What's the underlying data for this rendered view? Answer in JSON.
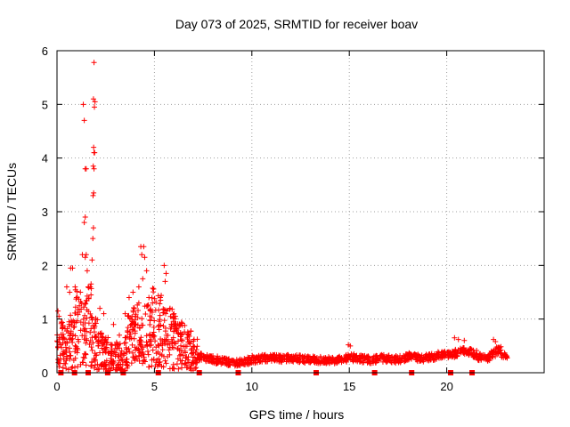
{
  "chart_data": {
    "type": "scatter",
    "title": "Day 073 of 2025, SRMTID for receiver boav",
    "xlabel": "GPS time / hours",
    "ylabel": "SRMTID / TECUs",
    "xlim": [
      0,
      25
    ],
    "ylim": [
      0,
      6
    ],
    "x_ticks": [
      0,
      5,
      10,
      15,
      20
    ],
    "y_ticks": [
      0,
      1,
      2,
      3,
      4,
      5,
      6
    ],
    "grid": true,
    "marker": "plus",
    "series_color": "#ff0000",
    "axis_markers_x": [
      0.2,
      0.9,
      1.6,
      2.6,
      3.4,
      5.2,
      7.3,
      9.3,
      13.3,
      16.3,
      18.2,
      20.2,
      21.3
    ],
    "series": [
      {
        "name": "SRMTID",
        "segments": [
          {
            "x": [
              0.0,
              0.3,
              0.6,
              0.9,
              1.2,
              1.5,
              1.8,
              2.1,
              2.4,
              2.7,
              3.0,
              3.3,
              3.6,
              3.9,
              4.2,
              4.5,
              4.8,
              5.1,
              5.4,
              5.7,
              6.0,
              6.3,
              6.6,
              6.9,
              7.2,
              7.5,
              7.8,
              8.1,
              8.4,
              8.7,
              9.0,
              9.3,
              9.6,
              9.9,
              10.2,
              10.5,
              10.8,
              11.1,
              11.4,
              11.7,
              12.0,
              12.3,
              12.6,
              12.9,
              13.2,
              13.5,
              13.8,
              14.1,
              14.4,
              14.7,
              15.0,
              15.3,
              15.6,
              15.9,
              16.2,
              16.5,
              16.8,
              17.1,
              17.4,
              17.7,
              18.0,
              18.3,
              18.6,
              18.9,
              19.2,
              19.5,
              19.8,
              20.1,
              20.4,
              20.7,
              21.0,
              21.3,
              21.6,
              21.9,
              22.2,
              22.5,
              22.8
            ],
            "y": [
              0.5,
              0.45,
              0.6,
              0.85,
              0.7,
              0.9,
              0.55,
              0.4,
              0.35,
              0.3,
              0.3,
              0.35,
              0.6,
              0.7,
              0.55,
              0.75,
              0.85,
              0.8,
              0.7,
              0.65,
              0.6,
              0.5,
              0.45,
              0.35,
              0.3,
              0.28,
              0.25,
              0.24,
              0.22,
              0.2,
              0.18,
              0.2,
              0.22,
              0.25,
              0.26,
              0.27,
              0.28,
              0.27,
              0.26,
              0.27,
              0.27,
              0.26,
              0.25,
              0.24,
              0.24,
              0.24,
              0.23,
              0.24,
              0.26,
              0.27,
              0.28,
              0.27,
              0.25,
              0.24,
              0.25,
              0.27,
              0.26,
              0.25,
              0.26,
              0.28,
              0.3,
              0.28,
              0.27,
              0.28,
              0.3,
              0.32,
              0.33,
              0.35,
              0.37,
              0.4,
              0.38,
              0.35,
              0.3,
              0.28,
              0.35,
              0.42,
              0.3
            ]
          }
        ]
      }
    ]
  }
}
